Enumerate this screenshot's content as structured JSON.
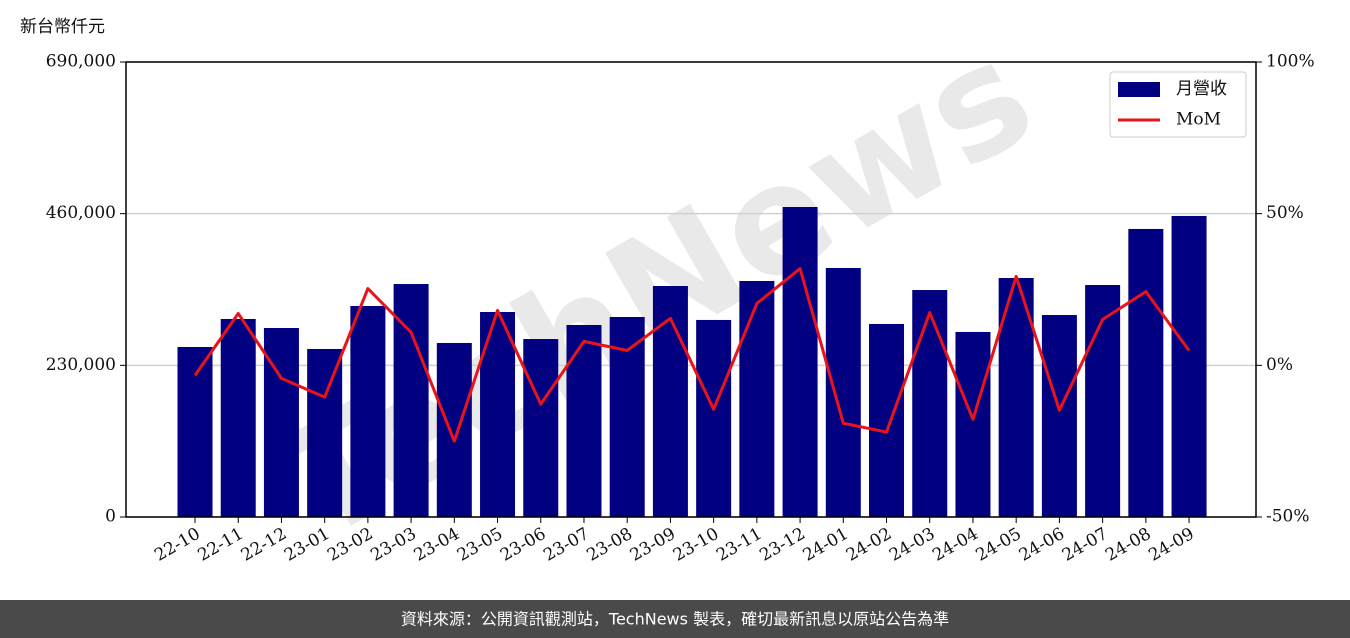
{
  "chart_data": {
    "type": "bar-line",
    "y_label": "新台幣仟元",
    "watermark": "TechNews",
    "source": "資料來源：公開資訊觀測站，TechNews 製表，確切最新訊息以原站公告為準",
    "categories": [
      "22-10",
      "22-11",
      "22-12",
      "23-01",
      "23-02",
      "23-03",
      "23-04",
      "23-05",
      "23-06",
      "23-07",
      "23-08",
      "23-09",
      "23-10",
      "23-11",
      "23-12",
      "24-01",
      "24-02",
      "24-03",
      "24-04",
      "24-05",
      "24-06",
      "24-07",
      "24-08",
      "24-09"
    ],
    "series": [
      {
        "name": "月營收",
        "type": "bar",
        "color": "#000080",
        "values": [
          257800,
          300300,
          286600,
          254800,
          320000,
          353300,
          263900,
          310900,
          269900,
          291200,
          303300,
          350300,
          298800,
          357900,
          470100,
          377600,
          292700,
          344200,
          280600,
          362400,
          306300,
          351800,
          436800,
          456500
        ]
      },
      {
        "name": "MoM",
        "type": "line",
        "axis": "y2",
        "color": "#e8141a",
        "values": [
          -3.3,
          17.1,
          -4.3,
          -10.5,
          25.3,
          10.9,
          -25,
          18.1,
          -12.8,
          7.9,
          4.9,
          15.5,
          -14.5,
          20.4,
          31.9,
          -19.1,
          -22,
          17.4,
          -17.8,
          29.3,
          -14.8,
          15.1,
          24.3,
          4.9
        ]
      }
    ],
    "ylim": [
      0,
      690000
    ],
    "yticks": [
      0,
      {
        "value": 230000,
        "label": "230,000"
      },
      {
        "value": 460000,
        "label": "460,000"
      },
      {
        "value": 690000,
        "label": "690,000"
      }
    ],
    "y2lim": [
      -50,
      100
    ],
    "y2ticks": [
      {
        "value": -50,
        "label": "-50%"
      },
      {
        "value": 0,
        "label": "0%"
      },
      {
        "value": 50,
        "label": "50%"
      },
      {
        "value": 100,
        "label": "100%"
      }
    ],
    "grid": true,
    "legend": "upper right"
  }
}
